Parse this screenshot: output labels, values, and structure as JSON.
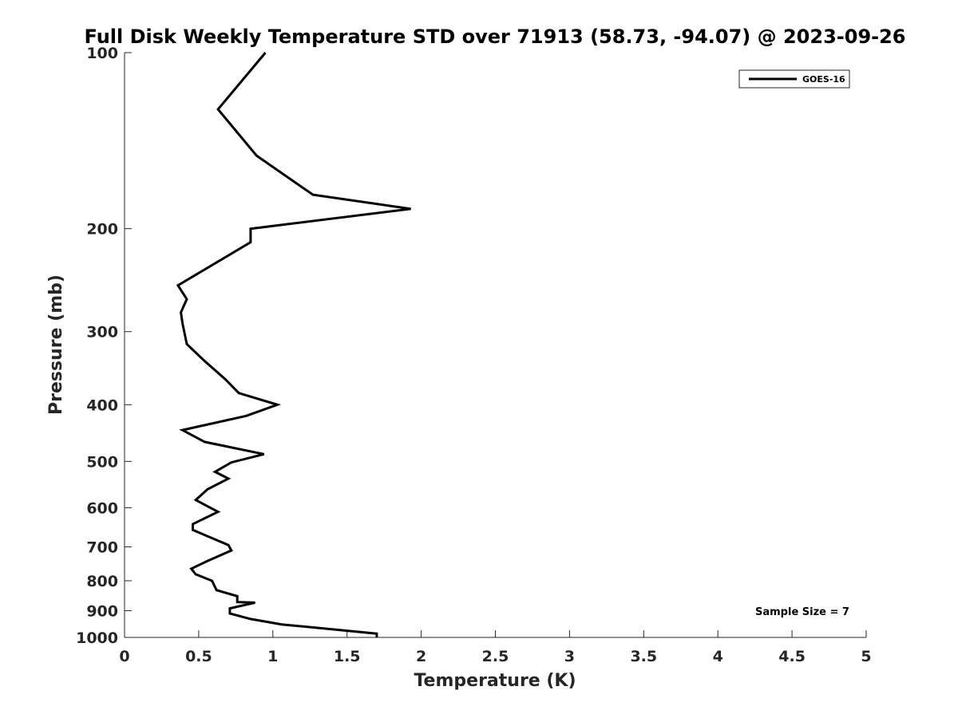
{
  "chart_data": {
    "type": "line",
    "title": "Full Disk Weekly Temperature STD over 71913 (58.73, -94.07) @ 2023-09-26",
    "xlabel": "Temperature (K)",
    "ylabel": "Pressure (mb)",
    "xlim": [
      0,
      5
    ],
    "ylim": [
      100,
      1000
    ],
    "yscale": "log",
    "y_reversed": true,
    "grid": false,
    "legend_position": "top-right",
    "x_ticks": [
      0,
      0.5,
      1,
      1.5,
      2,
      2.5,
      3,
      3.5,
      4,
      4.5,
      5
    ],
    "x_tick_labels": [
      "0",
      "0.5",
      "1",
      "1.5",
      "2",
      "2.5",
      "3",
      "3.5",
      "4",
      "4.5",
      "5"
    ],
    "y_ticks": [
      100,
      200,
      300,
      400,
      500,
      600,
      700,
      800,
      900,
      1000
    ],
    "y_tick_labels": [
      "100",
      "200",
      "300",
      "400",
      "500",
      "600",
      "700",
      "800",
      "900",
      "1000"
    ],
    "series": [
      {
        "name": "GOES-16",
        "color": "#000000",
        "points": [
          [
            0.95,
            100
          ],
          [
            0.63,
            125
          ],
          [
            0.89,
            150
          ],
          [
            1.27,
            175
          ],
          [
            1.93,
            185
          ],
          [
            0.85,
            200
          ],
          [
            0.85,
            211
          ],
          [
            0.36,
            250
          ],
          [
            0.42,
            264
          ],
          [
            0.38,
            278
          ],
          [
            0.39,
            290
          ],
          [
            0.42,
            315
          ],
          [
            0.53,
            335
          ],
          [
            0.68,
            362
          ],
          [
            0.77,
            382
          ],
          [
            1.03,
            400
          ],
          [
            0.82,
            418
          ],
          [
            0.39,
            442
          ],
          [
            0.54,
            463
          ],
          [
            0.94,
            486
          ],
          [
            0.72,
            502
          ],
          [
            0.61,
            521
          ],
          [
            0.7,
            535
          ],
          [
            0.56,
            558
          ],
          [
            0.48,
            582
          ],
          [
            0.63,
            610
          ],
          [
            0.46,
            640
          ],
          [
            0.46,
            655
          ],
          [
            0.7,
            695
          ],
          [
            0.72,
            710
          ],
          [
            0.56,
            740
          ],
          [
            0.45,
            763
          ],
          [
            0.48,
            780
          ],
          [
            0.59,
            800
          ],
          [
            0.62,
            830
          ],
          [
            0.76,
            850
          ],
          [
            0.76,
            870
          ],
          [
            0.88,
            872
          ],
          [
            0.71,
            892
          ],
          [
            0.71,
            910
          ],
          [
            0.85,
            930
          ],
          [
            1.06,
            950
          ],
          [
            1.7,
            985
          ],
          [
            1.7,
            1000
          ]
        ]
      }
    ],
    "annotation": "Sample Size = 7"
  }
}
